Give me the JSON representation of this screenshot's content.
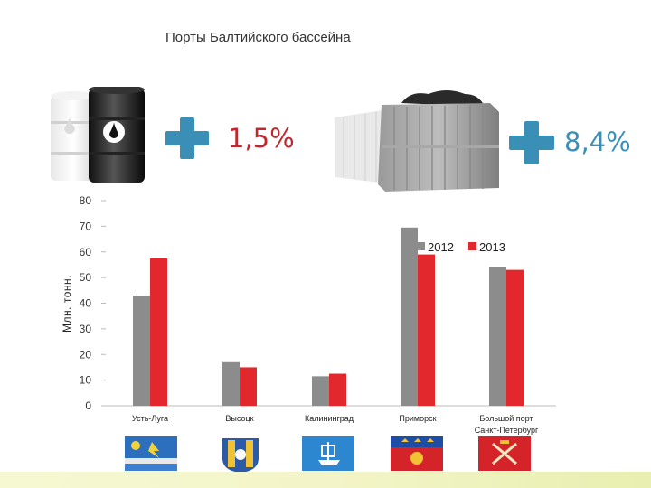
{
  "slide": {
    "title": "Порты Балтийского бассейна",
    "oil_growth": "1,5%",
    "container_growth": "8,4%"
  },
  "colors": {
    "plus": "#3a8fb7",
    "oil_pct": "#c0282d",
    "container_pct": "#3a8fb7",
    "series_2012": "#8c8c8c",
    "series_2013": "#e2282d"
  },
  "icons": [
    "oil-barrels-icon",
    "cargo-containers-icon",
    "plus-icon",
    "city-emblem-icon"
  ],
  "chart_data": {
    "type": "bar",
    "ylabel": "Млн. тонн.",
    "ylim": [
      0,
      80
    ],
    "yticks": [
      0,
      10,
      20,
      30,
      40,
      50,
      60,
      70,
      80
    ],
    "categories": [
      [
        "Усть-Луга"
      ],
      [
        "Высоцк"
      ],
      [
        "Калининград"
      ],
      [
        "Приморск"
      ],
      [
        "Большой порт",
        "Санкт-Петербург"
      ]
    ],
    "series": [
      {
        "name": "2012",
        "values": [
          43,
          17,
          11.5,
          69.5,
          54
        ]
      },
      {
        "name": "2013",
        "values": [
          57.5,
          15,
          12.5,
          59,
          53
        ]
      }
    ],
    "legend_position": "top-right",
    "grid": false
  }
}
